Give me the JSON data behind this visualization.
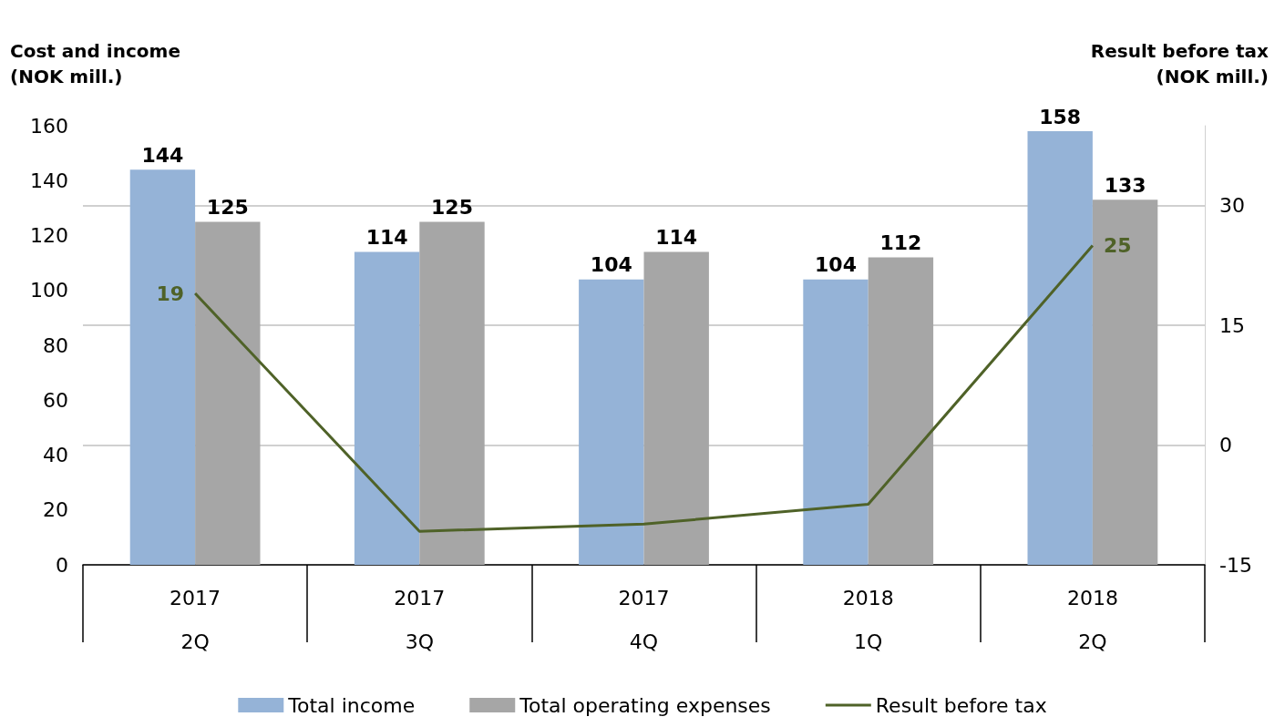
{
  "chart_data": {
    "type": "bar",
    "ylabel": "Cost and income\n(NOK mill.)",
    "y2label": "Result before tax\n(NOK mill.)",
    "categories": [
      "2017\n2Q",
      "2017\n3Q",
      "2017\n4Q",
      "2018\n1Q",
      "2018\n2Q"
    ],
    "series": [
      {
        "name": "Total income",
        "color": "#95b3d7",
        "values": [
          144,
          114,
          104,
          104,
          158
        ],
        "value_labels": [
          "144",
          "114",
          "104",
          "104",
          "158"
        ]
      },
      {
        "name": "Total operating expenses",
        "color": "#a6a6a6",
        "values": [
          125,
          125,
          114,
          112,
          133
        ],
        "value_labels": [
          "125",
          "125",
          "114",
          "112",
          "133"
        ]
      },
      {
        "name": "Result before tax",
        "type": "line",
        "axis": "y2",
        "color": "#4f6228",
        "values": [
          19,
          -10.8,
          -9.9,
          -7.4,
          25
        ],
        "value_labels": [
          "19",
          null,
          null,
          null,
          "25"
        ]
      }
    ],
    "ylim": [
      0,
      160
    ],
    "yticks": [
      0,
      20,
      40,
      60,
      80,
      100,
      120,
      140,
      160
    ],
    "y2lim": [
      -15,
      40
    ],
    "y2ticks": [
      -15,
      0,
      15,
      30
    ],
    "grid": "y",
    "legend": "bottom",
    "marker": "none"
  }
}
